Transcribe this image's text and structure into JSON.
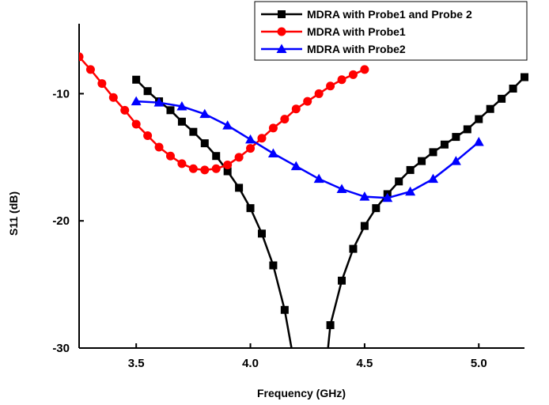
{
  "chart_data": {
    "type": "line",
    "xlabel": "Frequency (GHz)",
    "ylabel": "S11 (dB)",
    "xlim": [
      3.25,
      5.2
    ],
    "ylim": [
      -30,
      -4.5
    ],
    "xticks": [
      3.5,
      4.0,
      4.5,
      5.0
    ],
    "xtick_labels": [
      "3.5",
      "4.0",
      "4.5",
      "5.0"
    ],
    "yticks": [
      -10,
      -20,
      -30
    ],
    "ytick_labels": [
      "-10",
      "-20",
      "-30"
    ],
    "grid": false,
    "legend_position": "top-right",
    "series": [
      {
        "name": "MDRA with Probe1 and Probe 2",
        "color": "#000000",
        "marker": "square",
        "x": [
          3.5,
          3.55,
          3.6,
          3.65,
          3.7,
          3.75,
          3.8,
          3.85,
          3.9,
          3.95,
          4.0,
          4.05,
          4.1,
          4.15,
          4.18,
          4.34,
          4.35,
          4.4,
          4.45,
          4.5,
          4.55,
          4.6,
          4.65,
          4.7,
          4.75,
          4.8,
          4.85,
          4.9,
          4.95,
          5.0,
          5.05,
          5.1,
          5.15,
          5.2
        ],
        "y": [
          -8.9,
          -9.8,
          -10.6,
          -11.3,
          -12.2,
          -13.0,
          -13.9,
          -14.9,
          -16.1,
          -17.4,
          -19.0,
          -21.0,
          -23.5,
          -27.0,
          -30.0,
          -30.0,
          -28.2,
          -24.7,
          -22.2,
          -20.4,
          -19.0,
          -17.9,
          -16.9,
          -16.0,
          -15.3,
          -14.6,
          -14.0,
          -13.4,
          -12.8,
          -12.0,
          -11.2,
          -10.4,
          -9.6,
          -8.7
        ]
      },
      {
        "name": "MDRA with Probe1",
        "color": "#ff0000",
        "marker": "circle",
        "x": [
          3.25,
          3.3,
          3.35,
          3.4,
          3.45,
          3.5,
          3.55,
          3.6,
          3.65,
          3.7,
          3.75,
          3.8,
          3.85,
          3.9,
          3.95,
          4.0,
          4.05,
          4.1,
          4.15,
          4.2,
          4.25,
          4.3,
          4.35,
          4.4,
          4.45,
          4.5
        ],
        "y": [
          -7.1,
          -8.1,
          -9.2,
          -10.3,
          -11.3,
          -12.4,
          -13.3,
          -14.2,
          -14.9,
          -15.5,
          -15.9,
          -16.0,
          -15.9,
          -15.6,
          -15.0,
          -14.3,
          -13.5,
          -12.7,
          -12.0,
          -11.2,
          -10.6,
          -10.0,
          -9.4,
          -8.9,
          -8.5,
          -8.1
        ]
      },
      {
        "name": "MDRA with Probe2",
        "color": "#0000ff",
        "marker": "triangle",
        "x": [
          3.5,
          3.6,
          3.7,
          3.8,
          3.9,
          4.0,
          4.1,
          4.2,
          4.3,
          4.4,
          4.5,
          4.6,
          4.7,
          4.8,
          4.9,
          5.0
        ],
        "y": [
          -10.6,
          -10.7,
          -11.0,
          -11.6,
          -12.5,
          -13.6,
          -14.7,
          -15.7,
          -16.7,
          -17.5,
          -18.1,
          -18.2,
          -17.7,
          -16.7,
          -15.3,
          -13.8
        ]
      }
    ]
  }
}
